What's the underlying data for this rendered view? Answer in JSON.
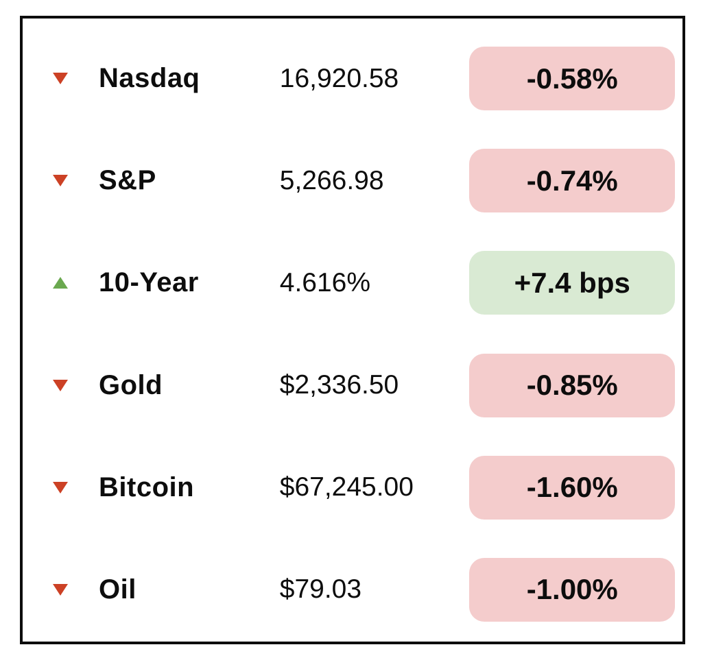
{
  "card": {
    "rows": [
      {
        "label": "Nasdaq",
        "value": "16,920.58",
        "change": "-0.58%",
        "direction": "down",
        "tone": "negative"
      },
      {
        "label": "S&P",
        "value": "5,266.98",
        "change": "-0.74%",
        "direction": "down",
        "tone": "negative"
      },
      {
        "label": "10-Year",
        "value": "4.616%",
        "change": "+7.4 bps",
        "direction": "up",
        "tone": "positive"
      },
      {
        "label": "Gold",
        "value": "$2,336.50",
        "change": "-0.85%",
        "direction": "down",
        "tone": "negative"
      },
      {
        "label": "Bitcoin",
        "value": "$67,245.00",
        "change": "-1.60%",
        "direction": "down",
        "tone": "negative"
      },
      {
        "label": "Oil",
        "value": "$79.03",
        "change": "-1.00%",
        "direction": "down",
        "tone": "negative"
      }
    ]
  },
  "colors": {
    "arrow_down": "#cc4125",
    "arrow_up": "#6aa84f",
    "badge_negative_bg": "#f4cccc",
    "badge_positive_bg": "#d9ead3",
    "border": "#0d0d0d",
    "text": "#0d0d0d"
  },
  "chart_data": {
    "type": "table",
    "title": "",
    "columns": [
      "instrument",
      "price",
      "change"
    ],
    "categories": [
      "Nasdaq",
      "S&P",
      "10-Year",
      "Gold",
      "Bitcoin",
      "Oil"
    ],
    "prices": [
      16920.58,
      5266.98,
      4.616,
      2336.5,
      67245.0,
      79.03
    ],
    "price_labels": [
      "16,920.58",
      "5,266.98",
      "4.616%",
      "$2,336.50",
      "$67,245.00",
      "$79.03"
    ],
    "changes": [
      -0.58,
      -0.74,
      7.4,
      -0.85,
      -1.6,
      -1.0
    ],
    "change_labels": [
      "-0.58%",
      "-0.74%",
      "+7.4 bps",
      "-0.85%",
      "-1.60%",
      "-1.00%"
    ],
    "change_units": [
      "percent",
      "percent",
      "bps",
      "percent",
      "percent",
      "percent"
    ],
    "directions": [
      "down",
      "down",
      "up",
      "down",
      "down",
      "down"
    ]
  }
}
